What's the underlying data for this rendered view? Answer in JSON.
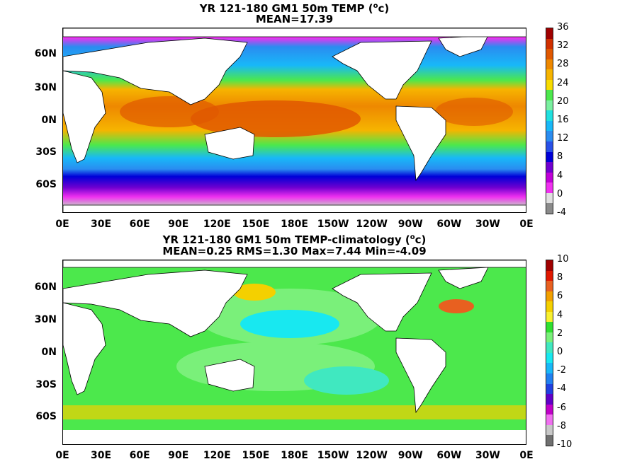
{
  "panels": [
    {
      "title_line1_prefix": "YR 121-180 GM1 50m TEMP (",
      "title_unit_sup": "o",
      "title_unit_suffix": "c)",
      "title_line2": "MEAN=17.39",
      "colorbar_labels": [
        "36",
        "32",
        "28",
        "24",
        "20",
        "16",
        "12",
        "8",
        "4",
        "0",
        "-4"
      ],
      "colorbar_colors": [
        "#a00000",
        "#d03000",
        "#e05800",
        "#ee8800",
        "#f6b400",
        "#f8dc00",
        "#4ce84c",
        "#7af0a0",
        "#20e0e0",
        "#18b8f8",
        "#2a8cf0",
        "#2850e8",
        "#0000d8",
        "#7000d0",
        "#c000d8",
        "#f030f0",
        "#e0e0e0",
        "#8a8a8a"
      ]
    },
    {
      "title_line1_prefix": "YR 121-180 GM1 50m TEMP-climatology (",
      "title_unit_sup": "o",
      "title_unit_suffix": "c)",
      "title_line2": "MEAN=0.25   RMS=1.30   Max=7.44   Min=-4.09",
      "colorbar_labels": [
        "10",
        "8",
        "6",
        "4",
        "2",
        "0",
        "-2",
        "-4",
        "-6",
        "-8",
        "-10"
      ],
      "colorbar_colors": [
        "#a00000",
        "#e01800",
        "#e86020",
        "#f2a000",
        "#f4d000",
        "#f8f030",
        "#30e030",
        "#7af07a",
        "#40e8c0",
        "#18e8f0",
        "#18b8f8",
        "#2080f0",
        "#2040e0",
        "#6000c8",
        "#c000c8",
        "#f070f0",
        "#c8c8c8",
        "#707070"
      ]
    }
  ],
  "lat_labels": [
    "60N",
    "30N",
    "0N",
    "30S",
    "60S"
  ],
  "lon_labels": [
    "0E",
    "30E",
    "60E",
    "90E",
    "120E",
    "150E",
    "180E",
    "150W",
    "120W",
    "90W",
    "60W",
    "30W",
    "0E"
  ]
}
